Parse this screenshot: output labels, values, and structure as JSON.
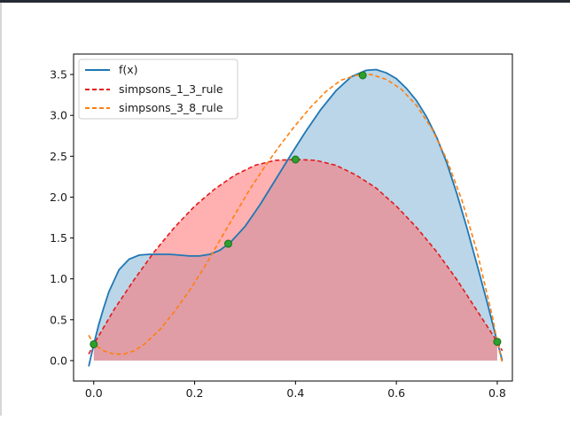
{
  "chart_data": {
    "type": "line",
    "xlim": [
      -0.04,
      0.83
    ],
    "ylim": [
      -0.25,
      3.75
    ],
    "xticks": [
      0.0,
      0.2,
      0.4,
      0.6,
      0.8
    ],
    "xtick_labels": [
      "0.0",
      "0.2",
      "0.4",
      "0.6",
      "0.8"
    ],
    "yticks": [
      0.0,
      0.5,
      1.0,
      1.5,
      2.0,
      2.5,
      3.0,
      3.5
    ],
    "ytick_labels": [
      "0.0",
      "0.5",
      "1.0",
      "1.5",
      "2.0",
      "2.5",
      "3.0",
      "3.5"
    ],
    "grid": false,
    "legend_position": "top-left",
    "colors": {
      "f": "#1f77b4",
      "s13": "#e31a1c",
      "s38": "#ff7f0e",
      "points": "#2ca02c",
      "point_edge": "#1a6e1a",
      "fill_f": "#1f77b4",
      "fill_s13": "#ff6f6f"
    },
    "legend": [
      "f(x)",
      "simpsons_1_3_rule",
      "simpsons_3_8_rule"
    ],
    "sample_points": {
      "x": [
        0.0,
        0.2667,
        0.4,
        0.5333,
        0.8
      ],
      "y": [
        0.2,
        1.43,
        2.46,
        3.49,
        0.23
      ]
    },
    "series": [
      {
        "name": "f(x)",
        "style": "solid",
        "x": [
          -0.01,
          0.0,
          0.01,
          0.02,
          0.03,
          0.05,
          0.07,
          0.09,
          0.11,
          0.13,
          0.15,
          0.17,
          0.19,
          0.21,
          0.23,
          0.25,
          0.27,
          0.3,
          0.33,
          0.36,
          0.39,
          0.42,
          0.45,
          0.48,
          0.51,
          0.54,
          0.56,
          0.58,
          0.6,
          0.62,
          0.64,
          0.66,
          0.68,
          0.7,
          0.72,
          0.74,
          0.76,
          0.78,
          0.8,
          0.81
        ],
        "y": [
          -0.07,
          0.2,
          0.44,
          0.65,
          0.84,
          1.11,
          1.24,
          1.29,
          1.3,
          1.3,
          1.3,
          1.29,
          1.28,
          1.28,
          1.3,
          1.35,
          1.44,
          1.64,
          1.91,
          2.21,
          2.51,
          2.8,
          3.07,
          3.3,
          3.47,
          3.55,
          3.56,
          3.52,
          3.45,
          3.33,
          3.18,
          2.98,
          2.73,
          2.42,
          2.04,
          1.62,
          1.17,
          0.71,
          0.23,
          0.0
        ]
      },
      {
        "name": "simpsons_1_3_rule",
        "style": "dashed",
        "x": [
          -0.01,
          0.0,
          0.04,
          0.08,
          0.12,
          0.16,
          0.2,
          0.24,
          0.28,
          0.32,
          0.36,
          0.4,
          0.44,
          0.48,
          0.52,
          0.56,
          0.6,
          0.64,
          0.68,
          0.72,
          0.76,
          0.8,
          0.81
        ],
        "y": [
          0.08,
          0.2,
          0.62,
          0.99,
          1.33,
          1.63,
          1.89,
          2.1,
          2.27,
          2.39,
          2.45,
          2.46,
          2.45,
          2.39,
          2.27,
          2.11,
          1.89,
          1.63,
          1.33,
          0.99,
          0.61,
          0.23,
          0.12
        ]
      },
      {
        "name": "simpsons_3_8_rule",
        "style": "dashed",
        "x": [
          -0.01,
          0.0,
          0.02,
          0.04,
          0.06,
          0.08,
          0.1,
          0.13,
          0.16,
          0.19,
          0.22,
          0.25,
          0.28,
          0.31,
          0.34,
          0.37,
          0.4,
          0.43,
          0.46,
          0.49,
          0.52,
          0.55,
          0.58,
          0.61,
          0.64,
          0.67,
          0.7,
          0.73,
          0.76,
          0.79,
          0.8,
          0.81
        ],
        "y": [
          0.31,
          0.2,
          0.12,
          0.08,
          0.08,
          0.12,
          0.2,
          0.37,
          0.6,
          0.86,
          1.15,
          1.47,
          1.79,
          2.1,
          2.38,
          2.64,
          2.88,
          3.1,
          3.29,
          3.43,
          3.49,
          3.5,
          3.44,
          3.32,
          3.12,
          2.84,
          2.46,
          1.96,
          1.33,
          0.55,
          0.23,
          -0.03
        ]
      }
    ]
  }
}
